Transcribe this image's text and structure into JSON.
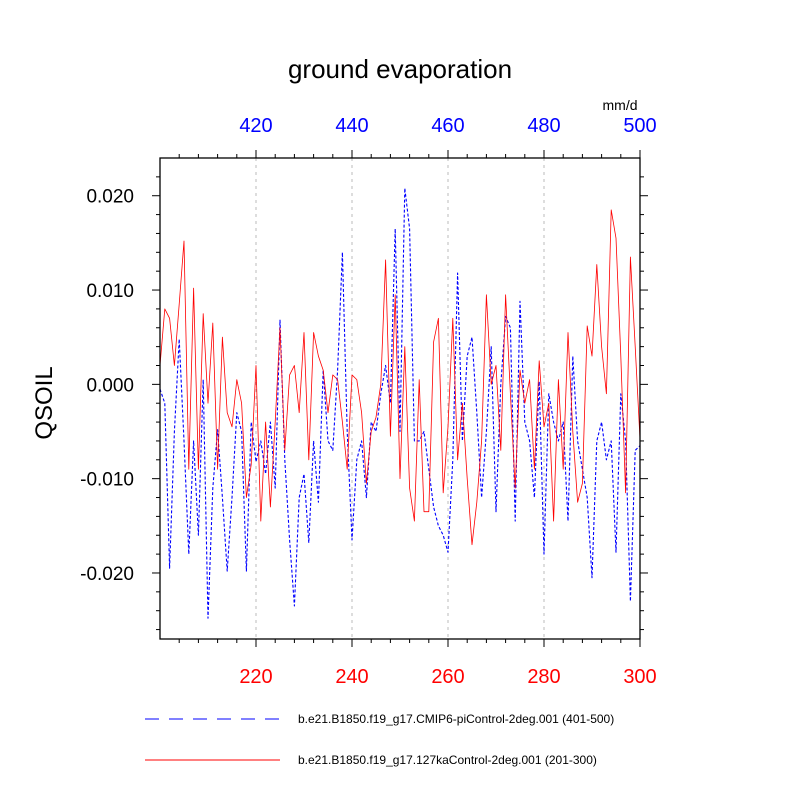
{
  "chart_data": {
    "type": "line",
    "title": "ground evaporation",
    "ylabel": "QSOIL",
    "units": "mm/d",
    "ylim": [
      -0.027,
      0.024
    ],
    "bottom_xlim": [
      200,
      300
    ],
    "top_xlim": [
      400,
      500
    ],
    "bottom_ticks": [
      220,
      240,
      260,
      280,
      300
    ],
    "top_ticks": [
      420,
      440,
      460,
      480,
      500
    ],
    "y_ticks": [
      -0.02,
      -0.01,
      0.0,
      0.01,
      0.02
    ],
    "y_tick_labels": [
      "-0.020",
      "-0.010",
      "0.000",
      "0.010",
      "0.020"
    ],
    "grid": "vertical dashed lines at bottom ticks",
    "bottom_axis_color": "#ff0000",
    "top_axis_color": "#0000ff",
    "series": [
      {
        "name": "b.e21.B1850.f19_g17.CMIP6-piControl-2deg.001 (401-500)",
        "axis": "top",
        "color": "#0000ff",
        "dash": "dashed",
        "x_start": 400,
        "values": [
          -0.0005,
          -0.002,
          -0.0195,
          -0.005,
          0.0048,
          -0.006,
          -0.018,
          -0.006,
          -0.016,
          0.0005,
          -0.0248,
          -0.011,
          -0.0048,
          -0.012,
          -0.0198,
          -0.012,
          -0.003,
          -0.005,
          -0.0198,
          -0.004,
          -0.0082,
          -0.006,
          -0.0095,
          -0.004,
          -0.011,
          0.0068,
          -0.008,
          -0.0165,
          -0.0235,
          -0.012,
          -0.0095,
          -0.0168,
          -0.006,
          -0.0125,
          0.0015,
          -0.006,
          -0.007,
          0.0015,
          0.014,
          -0.005,
          -0.0165,
          -0.008,
          -0.006,
          -0.012,
          -0.004,
          -0.005,
          -0.001,
          0.002,
          -0.002,
          0.0165,
          -0.005,
          0.0208,
          0.0165,
          -0.006,
          -0.006,
          -0.005,
          -0.009,
          -0.013,
          -0.015,
          -0.016,
          -0.0178,
          -0.008,
          0.0118,
          -0.006,
          0.003,
          0.005,
          -0.003,
          -0.012,
          -0.005,
          0.004,
          -0.0135,
          0.0,
          0.0072,
          0.006,
          -0.0145,
          0.0088,
          -0.004,
          -0.006,
          -0.012,
          0.0003,
          -0.018,
          -0.001,
          -0.004,
          -0.006,
          -0.004,
          -0.0145,
          0.003,
          -0.006,
          -0.009,
          -0.012,
          -0.0205,
          -0.006,
          -0.004,
          -0.008,
          -0.006,
          -0.0178,
          -0.001,
          -0.006,
          -0.023,
          -0.007,
          -0.0065
        ]
      },
      {
        "name": "b.e21.B1850.f19_g17.127kaControl-2deg.001 (201-300)",
        "axis": "bottom",
        "color": "#ff0000",
        "dash": "solid",
        "x_start": 200,
        "values": [
          0.002,
          0.008,
          0.007,
          0.002,
          0.0085,
          0.0152,
          -0.009,
          0.0102,
          -0.009,
          0.0075,
          -0.002,
          0.0065,
          -0.009,
          0.005,
          -0.003,
          -0.0045,
          0.0005,
          -0.002,
          -0.012,
          -0.0085,
          0.002,
          -0.0145,
          -0.004,
          -0.013,
          -0.004,
          0.006,
          -0.007,
          0.001,
          0.002,
          -0.003,
          0.0055,
          -0.008,
          0.0055,
          0.003,
          0.0015,
          -0.003,
          0.001,
          0.0005,
          -0.004,
          -0.009,
          0.001,
          0.0005,
          -0.003,
          -0.0105,
          -0.005,
          -0.0035,
          0.0,
          0.0132,
          -0.0055,
          0.0095,
          -0.01,
          0.004,
          -0.011,
          -0.0145,
          0.0005,
          -0.0135,
          -0.0135,
          0.0045,
          0.007,
          -0.0115,
          -0.0045,
          0.007,
          -0.008,
          -0.002,
          -0.01,
          -0.017,
          -0.0125,
          -0.006,
          0.0095,
          0.0,
          0.002,
          -0.007,
          0.0095,
          -0.001,
          -0.011,
          0.0015,
          -0.002,
          0.0005,
          -0.009,
          0.0025,
          -0.0045,
          -0.002,
          -0.0145,
          0.0005,
          -0.009,
          0.0055,
          -0.005,
          -0.0125,
          -0.0105,
          0.0062,
          0.003,
          0.0127,
          0.004,
          -0.001,
          0.0185,
          0.0155,
          0.003,
          -0.0115,
          0.0135,
          0.004,
          -0.0058
        ]
      }
    ]
  }
}
